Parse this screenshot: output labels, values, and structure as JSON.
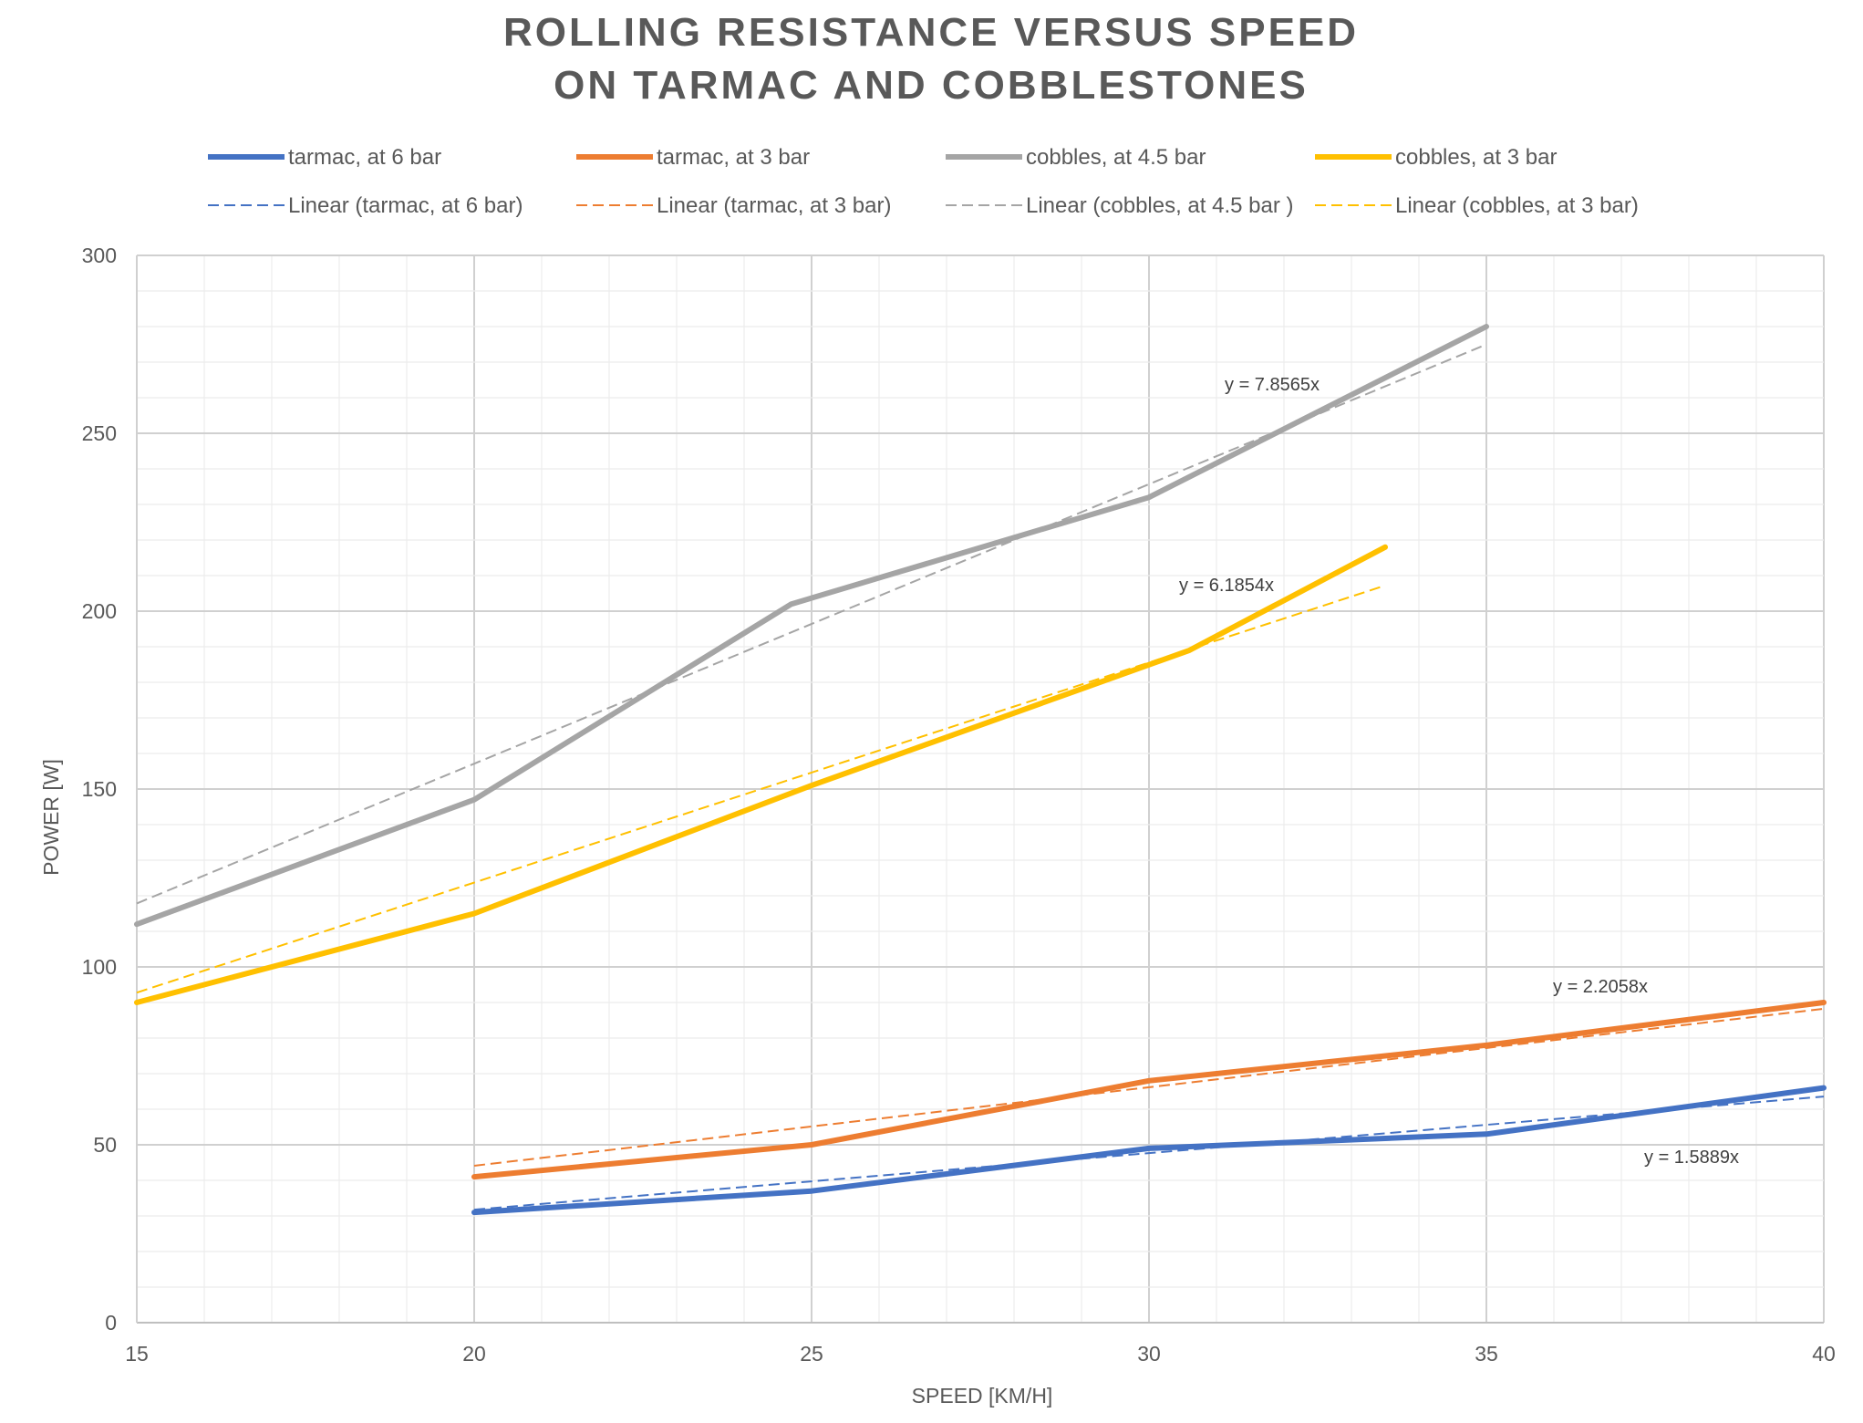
{
  "chart_data": {
    "type": "line",
    "title_line1": "ROLLING RESISTANCE VERSUS SPEED",
    "title_line2": "ON TARMAC AND COBBLESTONES",
    "xlabel": "SPEED [KM/H]",
    "ylabel": "POWER [W]",
    "xlim": [
      15,
      40
    ],
    "ylim": [
      0,
      300
    ],
    "x_ticks": [
      15,
      20,
      25,
      30,
      35,
      40
    ],
    "y_ticks": [
      0,
      50,
      100,
      150,
      200,
      250,
      300
    ],
    "grid": true,
    "legend_position": "top",
    "series": [
      {
        "name": "tarmac, at 6 bar",
        "color": "#4472C4",
        "x": [
          20,
          25,
          30,
          35,
          40
        ],
        "y": [
          31,
          37,
          49,
          53,
          66
        ],
        "trendline": {
          "name": "Linear (tarmac, at 6 bar)",
          "slope": 1.5889,
          "x_range": [
            20,
            40
          ],
          "equation": "y = 1.5889x"
        }
      },
      {
        "name": "tarmac, at 3 bar",
        "color": "#ED7D31",
        "x": [
          20,
          25,
          30,
          35,
          40
        ],
        "y": [
          41,
          50,
          68,
          78,
          90
        ],
        "trendline": {
          "name": "Linear (tarmac, at 3 bar)",
          "slope": 2.2058,
          "x_range": [
            20,
            40
          ],
          "equation": "y = 2.2058x"
        }
      },
      {
        "name": "cobbles, at 4.5 bar",
        "color": "#A5A5A5",
        "x": [
          15,
          20,
          24.7,
          30,
          35
        ],
        "y": [
          112,
          147,
          202,
          232,
          280
        ],
        "trendline": {
          "name": "Linear (cobbles, at 4.5 bar )",
          "slope": 7.8565,
          "x_range": [
            15,
            35
          ],
          "equation": "y = 7.8565x"
        }
      },
      {
        "name": "cobbles, at 3 bar",
        "color": "#FFC000",
        "x": [
          15,
          20,
          25,
          30.6,
          33.5
        ],
        "y": [
          90,
          115,
          151,
          189,
          218
        ],
        "trendline": {
          "name": "Linear (cobbles, at 3 bar)",
          "slope": 6.1854,
          "x_range": [
            15,
            33.5
          ],
          "equation": "y = 6.1854x"
        }
      }
    ]
  }
}
